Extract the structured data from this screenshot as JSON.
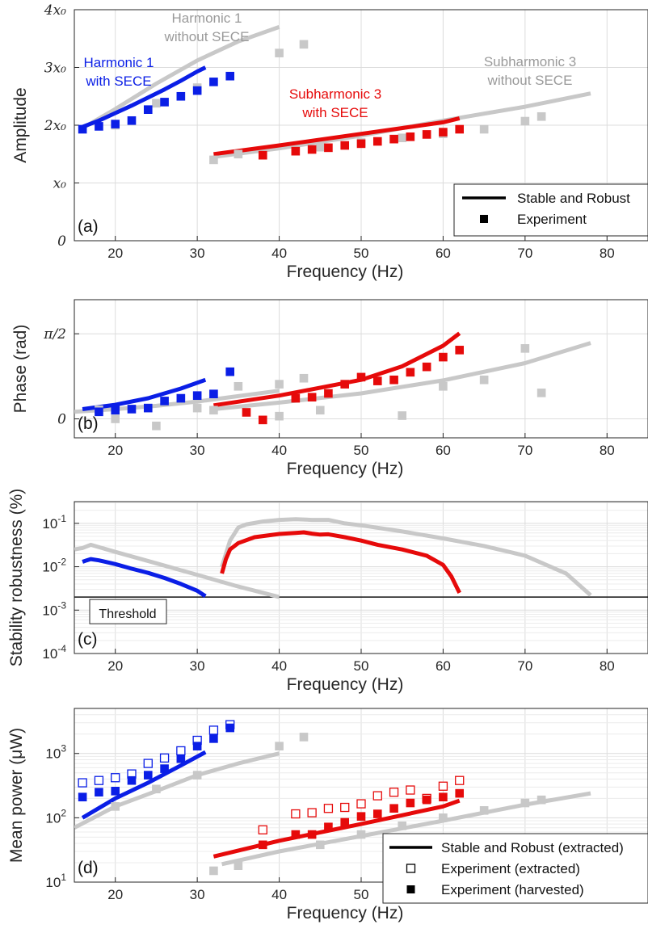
{
  "colors": {
    "blue": "#0a1ee6",
    "red": "#e60a0a",
    "gray": "#c8c8c8",
    "grid": "#dcdcdc"
  },
  "chart_data": [
    {
      "id": "a",
      "type": "line+scatter",
      "panel_label": "(a)",
      "xlabel": "Frequency (Hz)",
      "ylabel": "Amplitude",
      "xlim": [
        15,
        85
      ],
      "ylim": [
        0,
        4
      ],
      "xticks": [
        20,
        30,
        40,
        50,
        60,
        70,
        80
      ],
      "yticks": [
        0,
        1,
        2,
        3,
        4
      ],
      "ytick_labels": [
        "0",
        "x₀",
        "2x₀",
        "3x₀",
        "4x₀"
      ],
      "grid": true,
      "legend_position": "bottom-right",
      "legend": [
        {
          "label": "Stable and Robust",
          "kind": "line"
        },
        {
          "label": "Experiment",
          "kind": "marker"
        }
      ],
      "annotations": [
        {
          "text": "Harmonic 1",
          "color": "gray"
        },
        {
          "text": "without SECE",
          "color": "gray"
        },
        {
          "text": "Harmonic 1",
          "color": "blue"
        },
        {
          "text": "with SECE",
          "color": "blue"
        },
        {
          "text": "Subharmonic 3",
          "color": "red"
        },
        {
          "text": "with SECE",
          "color": "red"
        },
        {
          "text": "Subharmonic 3",
          "color": "gray"
        },
        {
          "text": "without SECE",
          "color": "gray"
        }
      ],
      "series": [
        {
          "role": "line",
          "color": "gray",
          "x": [
            16,
            20,
            25,
            30,
            35,
            40
          ],
          "y": [
            1.95,
            2.28,
            2.72,
            3.12,
            3.45,
            3.7
          ]
        },
        {
          "role": "line",
          "color": "gray",
          "x": [
            32,
            40,
            50,
            60,
            70,
            78
          ],
          "y": [
            1.45,
            1.6,
            1.82,
            2.08,
            2.32,
            2.55
          ]
        },
        {
          "role": "line",
          "color": "blue",
          "x": [
            16,
            18,
            20,
            22,
            24,
            26,
            28,
            30,
            31
          ],
          "y": [
            1.97,
            2.08,
            2.21,
            2.34,
            2.48,
            2.62,
            2.77,
            2.93,
            3.0
          ]
        },
        {
          "role": "line",
          "color": "red",
          "x": [
            32,
            40,
            50,
            60,
            62
          ],
          "y": [
            1.5,
            1.65,
            1.85,
            2.05,
            2.12
          ]
        },
        {
          "role": "markers",
          "color": "gray",
          "x": [
            20,
            25,
            30,
            32,
            35,
            40,
            43,
            45,
            50,
            55,
            60,
            65,
            70,
            72
          ],
          "y": [
            2.0,
            2.38,
            2.65,
            1.4,
            1.5,
            3.25,
            3.4,
            1.62,
            1.7,
            1.78,
            1.85,
            1.93,
            2.07,
            2.15
          ]
        },
        {
          "role": "markers",
          "color": "blue",
          "x": [
            16,
            18,
            20,
            22,
            24,
            26,
            28,
            30,
            32,
            34
          ],
          "y": [
            1.93,
            1.98,
            2.02,
            2.08,
            2.27,
            2.4,
            2.5,
            2.6,
            2.75,
            2.85
          ]
        },
        {
          "role": "markers",
          "color": "red",
          "x": [
            38,
            42,
            44,
            46,
            48,
            50,
            52,
            54,
            56,
            58,
            60,
            62
          ],
          "y": [
            1.48,
            1.55,
            1.58,
            1.61,
            1.65,
            1.68,
            1.72,
            1.76,
            1.8,
            1.84,
            1.88,
            1.93
          ]
        }
      ]
    },
    {
      "id": "b",
      "type": "line+scatter",
      "panel_label": "(b)",
      "xlabel": "Frequency (Hz)",
      "ylabel": "Phase  (rad)",
      "xlim": [
        15,
        85
      ],
      "ylim": [
        -0.35,
        2.2
      ],
      "yticks": [
        0,
        1.5708
      ],
      "ytick_labels": [
        "0",
        "π/2"
      ],
      "grid": true,
      "series": [
        {
          "role": "line",
          "color": "gray",
          "x": [
            15,
            20,
            25,
            30,
            35,
            40
          ],
          "y": [
            0.13,
            0.18,
            0.24,
            0.32,
            0.42,
            0.52
          ]
        },
        {
          "role": "line",
          "color": "gray",
          "x": [
            32,
            40,
            50,
            60,
            70,
            78
          ],
          "y": [
            0.18,
            0.3,
            0.47,
            0.71,
            1.03,
            1.4
          ]
        },
        {
          "role": "line",
          "color": "blue",
          "x": [
            16,
            20,
            24,
            28,
            31
          ],
          "y": [
            0.18,
            0.26,
            0.38,
            0.56,
            0.72
          ]
        },
        {
          "role": "line",
          "color": "red",
          "x": [
            32,
            40,
            50,
            55,
            60,
            62
          ],
          "y": [
            0.25,
            0.43,
            0.72,
            0.97,
            1.35,
            1.58
          ]
        },
        {
          "role": "markers",
          "color": "gray",
          "x": [
            18,
            20,
            25,
            30,
            32,
            35,
            40,
            40,
            43,
            45,
            55,
            60,
            65,
            70,
            72
          ],
          "y": [
            0.17,
            0.0,
            -0.13,
            0.2,
            0.16,
            0.6,
            0.64,
            0.05,
            0.75,
            0.16,
            0.06,
            0.6,
            0.72,
            1.3,
            0.48
          ]
        },
        {
          "role": "markers",
          "color": "blue",
          "x": [
            18,
            20,
            22,
            24,
            26,
            28,
            30,
            32,
            34
          ],
          "y": [
            0.13,
            0.16,
            0.18,
            0.2,
            0.33,
            0.38,
            0.43,
            0.46,
            0.87
          ]
        },
        {
          "role": "markers",
          "color": "red",
          "x": [
            36,
            38,
            42,
            44,
            46,
            48,
            50,
            52,
            54,
            56,
            58,
            60,
            62
          ],
          "y": [
            0.12,
            -0.02,
            0.38,
            0.4,
            0.47,
            0.64,
            0.77,
            0.7,
            0.72,
            0.86,
            0.96,
            1.14,
            1.27
          ]
        }
      ]
    },
    {
      "id": "c",
      "type": "line",
      "panel_label": "(c)",
      "xlabel": "Frequency (Hz)",
      "ylabel": "Stability robustness (%)",
      "xlim": [
        15,
        85
      ],
      "ylim_log10": [
        -4,
        -0.5
      ],
      "yticks_log10": [
        -4,
        -3,
        -2,
        -1
      ],
      "threshold": 0.002,
      "threshold_label": "Threshold",
      "series": [
        {
          "color": "gray",
          "x": [
            15,
            16,
            17,
            20,
            25,
            30,
            35,
            40
          ],
          "y": [
            0.025,
            0.027,
            0.032,
            0.022,
            0.012,
            0.0065,
            0.0035,
            0.002
          ]
        },
        {
          "color": "gray",
          "x": [
            33,
            34,
            35,
            36,
            38,
            40,
            42,
            44,
            46,
            48,
            50,
            55,
            60,
            65,
            70,
            75,
            78
          ],
          "y": [
            0.01,
            0.04,
            0.08,
            0.095,
            0.11,
            0.12,
            0.125,
            0.12,
            0.12,
            0.1,
            0.09,
            0.065,
            0.045,
            0.03,
            0.018,
            0.007,
            0.0022
          ]
        },
        {
          "color": "blue",
          "x": [
            16,
            16.5,
            17,
            18,
            20,
            22,
            24,
            26,
            28,
            30,
            31
          ],
          "y": [
            0.013,
            0.014,
            0.015,
            0.014,
            0.0115,
            0.009,
            0.0072,
            0.0055,
            0.004,
            0.0028,
            0.0021
          ]
        },
        {
          "color": "red",
          "x": [
            33,
            33.5,
            34,
            35,
            37,
            40,
            42,
            43,
            44,
            45,
            46,
            48,
            50,
            52,
            55,
            58,
            60,
            61,
            62
          ],
          "y": [
            0.007,
            0.015,
            0.025,
            0.035,
            0.048,
            0.057,
            0.06,
            0.062,
            0.058,
            0.055,
            0.056,
            0.048,
            0.04,
            0.032,
            0.025,
            0.018,
            0.011,
            0.006,
            0.0025
          ]
        }
      ]
    },
    {
      "id": "d",
      "type": "line+scatter",
      "panel_label": "(d)",
      "xlabel": "Frequency (Hz)",
      "ylabel": "Mean power (μW)",
      "xlim": [
        15,
        85
      ],
      "ylim_log10": [
        1,
        3.7
      ],
      "yticks_log10": [
        1,
        2,
        3
      ],
      "grid": true,
      "legend_position": "bottom-right",
      "legend": [
        {
          "label": "Stable and Robust (extracted)",
          "kind": "line"
        },
        {
          "label": "Experiment (extracted)",
          "kind": "open-marker"
        },
        {
          "label": "Experiment (harvested)",
          "kind": "marker"
        }
      ],
      "series": [
        {
          "role": "line",
          "color": "gray",
          "x": [
            15,
            20,
            25,
            30,
            35,
            40
          ],
          "y": [
            70,
            150,
            260,
            460,
            700,
            1000
          ]
        },
        {
          "role": "line",
          "color": "gray",
          "x": [
            33,
            40,
            50,
            60,
            70,
            78
          ],
          "y": [
            19,
            30,
            52,
            90,
            160,
            240
          ]
        },
        {
          "role": "line",
          "color": "blue",
          "x": [
            16,
            20,
            24,
            28,
            31
          ],
          "y": [
            100,
            200,
            350,
            650,
            1050
          ]
        },
        {
          "role": "line",
          "color": "red",
          "x": [
            32,
            40,
            50,
            60,
            62
          ],
          "y": [
            25,
            44,
            80,
            150,
            185
          ]
        },
        {
          "role": "markers",
          "color": "gray",
          "x": [
            20,
            25,
            30,
            32,
            35,
            40,
            43,
            45,
            50,
            55,
            60,
            65,
            70,
            72
          ],
          "y": [
            150,
            280,
            460,
            15,
            18,
            1300,
            1800,
            38,
            55,
            75,
            100,
            130,
            170,
            190
          ]
        },
        {
          "role": "open-markers",
          "color": "blue",
          "x": [
            16,
            18,
            20,
            22,
            24,
            26,
            28,
            30,
            32,
            34
          ],
          "y": [
            350,
            380,
            420,
            480,
            700,
            850,
            1100,
            1600,
            2300,
            2800
          ]
        },
        {
          "role": "markers",
          "color": "blue",
          "x": [
            16,
            18,
            20,
            22,
            24,
            26,
            28,
            30,
            32,
            34
          ],
          "y": [
            210,
            250,
            260,
            380,
            460,
            580,
            830,
            1300,
            1700,
            2500
          ]
        },
        {
          "role": "open-markers",
          "color": "red",
          "x": [
            38,
            42,
            44,
            46,
            48,
            50,
            52,
            54,
            56,
            58,
            60,
            62
          ],
          "y": [
            65,
            115,
            120,
            140,
            145,
            165,
            220,
            250,
            270,
            200,
            310,
            380
          ]
        },
        {
          "role": "markers",
          "color": "red",
          "x": [
            38,
            42,
            44,
            46,
            48,
            50,
            52,
            54,
            56,
            58,
            60,
            62
          ],
          "y": [
            38,
            55,
            55,
            72,
            85,
            105,
            115,
            140,
            170,
            190,
            210,
            240
          ]
        }
      ]
    }
  ]
}
